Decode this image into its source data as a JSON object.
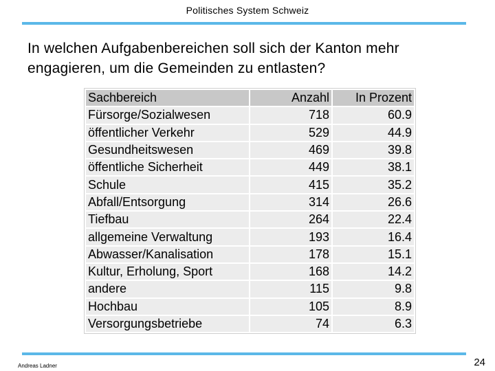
{
  "header": {
    "text": "Politisches System Schweiz"
  },
  "title": {
    "line1": "In welchen Aufgabenbereichen soll sich der Kanton mehr",
    "line2": "engagieren, um die Gemeinden zu entlasten?"
  },
  "table": {
    "columns": [
      "Sachbereich",
      "Anzahl",
      "In Prozent"
    ],
    "rows": [
      [
        "Fürsorge/Sozialwesen",
        "718",
        "60.9"
      ],
      [
        "öffentlicher Verkehr",
        "529",
        "44.9"
      ],
      [
        "Gesundheitswesen",
        "469",
        "39.8"
      ],
      [
        "öffentliche Sicherheit",
        "449",
        "38.1"
      ],
      [
        "Schule",
        "415",
        "35.2"
      ],
      [
        "Abfall/Entsorgung",
        "314",
        "26.6"
      ],
      [
        "Tiefbau",
        "264",
        "22.4"
      ],
      [
        "allgemeine Verwaltung",
        "193",
        "16.4"
      ],
      [
        "Abwasser/Kanalisation",
        "178",
        "15.1"
      ],
      [
        "Kultur, Erholung, Sport",
        "168",
        "14.2"
      ],
      [
        "andere",
        "115",
        "9.8"
      ],
      [
        "Hochbau",
        "105",
        "8.9"
      ],
      [
        "Versorgungsbetriebe",
        "74",
        "6.3"
      ]
    ]
  },
  "footer": {
    "author": "Andreas Ladner",
    "page": "24"
  },
  "colors": {
    "accent_rule": "#5bb8e8",
    "header_cell": "#c8c8c8",
    "body_cell": "#ececec"
  }
}
